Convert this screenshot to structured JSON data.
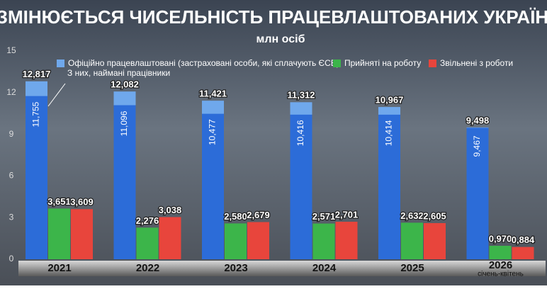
{
  "chart_data": {
    "type": "bar",
    "title": "ЯК ЗМІНЮЄТЬСЯ ЧИСЕЛЬНІСТЬ ПРАЦЕВЛАШТОВАНИХ УКРАЇНЦІВ",
    "subtitle": "млн осіб",
    "categories": [
      "2021",
      "2022",
      "2023",
      "2024",
      "2025",
      "2026"
    ],
    "category_notes": [
      null,
      null,
      null,
      null,
      null,
      "січень-квітень"
    ],
    "series": [
      {
        "name": "Офіційно працевлаштовані (застраховані особи, які сплачують ЄСВ)",
        "color": "#6fa8ec",
        "values": [
          12.817,
          12.082,
          11.421,
          11.312,
          10.967,
          9.498
        ],
        "value_labels": [
          "12,817",
          "12,082",
          "11,421",
          "11,312",
          "10,967",
          "9,498"
        ]
      },
      {
        "name": "Прийняті на роботу",
        "color": "#3cb54a",
        "values": [
          3.651,
          2.276,
          2.58,
          2.571,
          2.632,
          0.97
        ],
        "value_labels": [
          "3,651",
          "2,276",
          "2,580",
          "2,571",
          "2,632",
          "0,970"
        ]
      },
      {
        "name": "Звільнені з роботи",
        "color": "#e8453c",
        "values": [
          3.609,
          3.038,
          2.679,
          2.701,
          2.605,
          0.884
        ],
        "value_labels": [
          "3,609",
          "3,038",
          "2,679",
          "2,701",
          "2,605",
          "0,884"
        ]
      }
    ],
    "hired": {
      "name": "З них, наймані працівники",
      "color": "#2c6cd8",
      "values": [
        11.755,
        11.096,
        10.477,
        10.416,
        10.414,
        9.467
      ],
      "value_labels": [
        "11,755",
        "11,096",
        "10,477",
        "10,416",
        "10,414",
        "9,467"
      ]
    },
    "ylim": [
      0,
      15
    ],
    "yticks": [
      0,
      3,
      6,
      9,
      12,
      15
    ]
  }
}
